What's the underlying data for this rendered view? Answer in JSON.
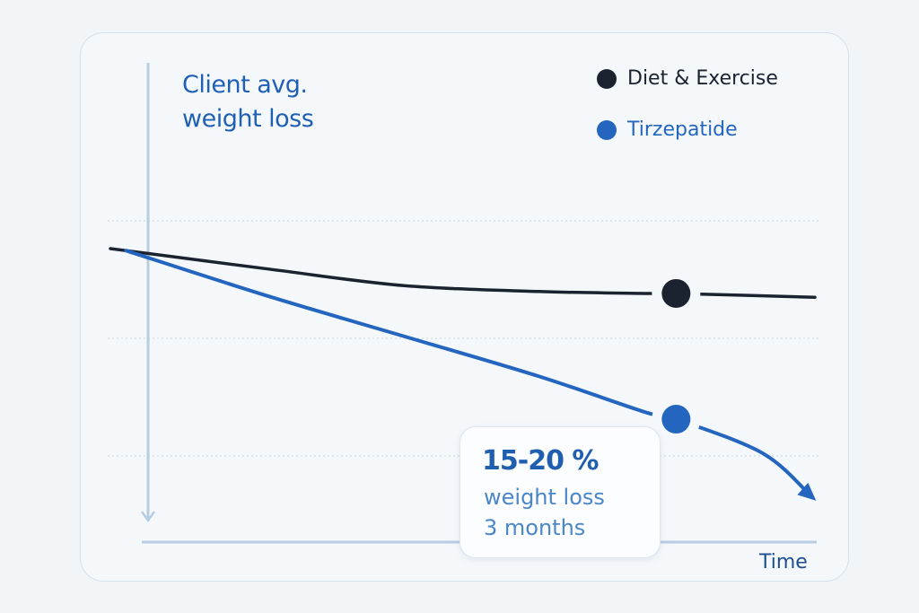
{
  "chart_data": {
    "type": "line",
    "title": "Client avg. weight loss",
    "xlabel": "Time",
    "ylabel": "Client avg. weight loss",
    "xlim": [
      0,
      10
    ],
    "ylim": [
      -30,
      5
    ],
    "grid": true,
    "legend_position": "top-right",
    "series": [
      {
        "name": "Diet & Exercise",
        "color": "#1b2230",
        "x": [
          0,
          2.25,
          4.17,
          6.08,
          7.6,
          8.03,
          10
        ],
        "y": [
          0,
          -2.1,
          -3.8,
          -4.4,
          -4.6,
          -4.6,
          -5
        ]
      },
      {
        "name": "Tirzepatide",
        "color": "#2466bf",
        "x": [
          0.22,
          2.25,
          4.17,
          6.08,
          7.6,
          8.03,
          9.26,
          9.96
        ],
        "y": [
          -0.2,
          -4.9,
          -9.0,
          -13.1,
          -16.8,
          -17.5,
          -21,
          -25.5
        ]
      }
    ],
    "markers": [
      {
        "series": "Diet & Exercise",
        "x": 8.03,
        "y": -4.6
      },
      {
        "series": "Tirzepatide",
        "x": 8.03,
        "y": -17.5
      }
    ],
    "annotation": {
      "value": "15-20 %",
      "line1": "weight loss",
      "line2": "3 months"
    }
  }
}
